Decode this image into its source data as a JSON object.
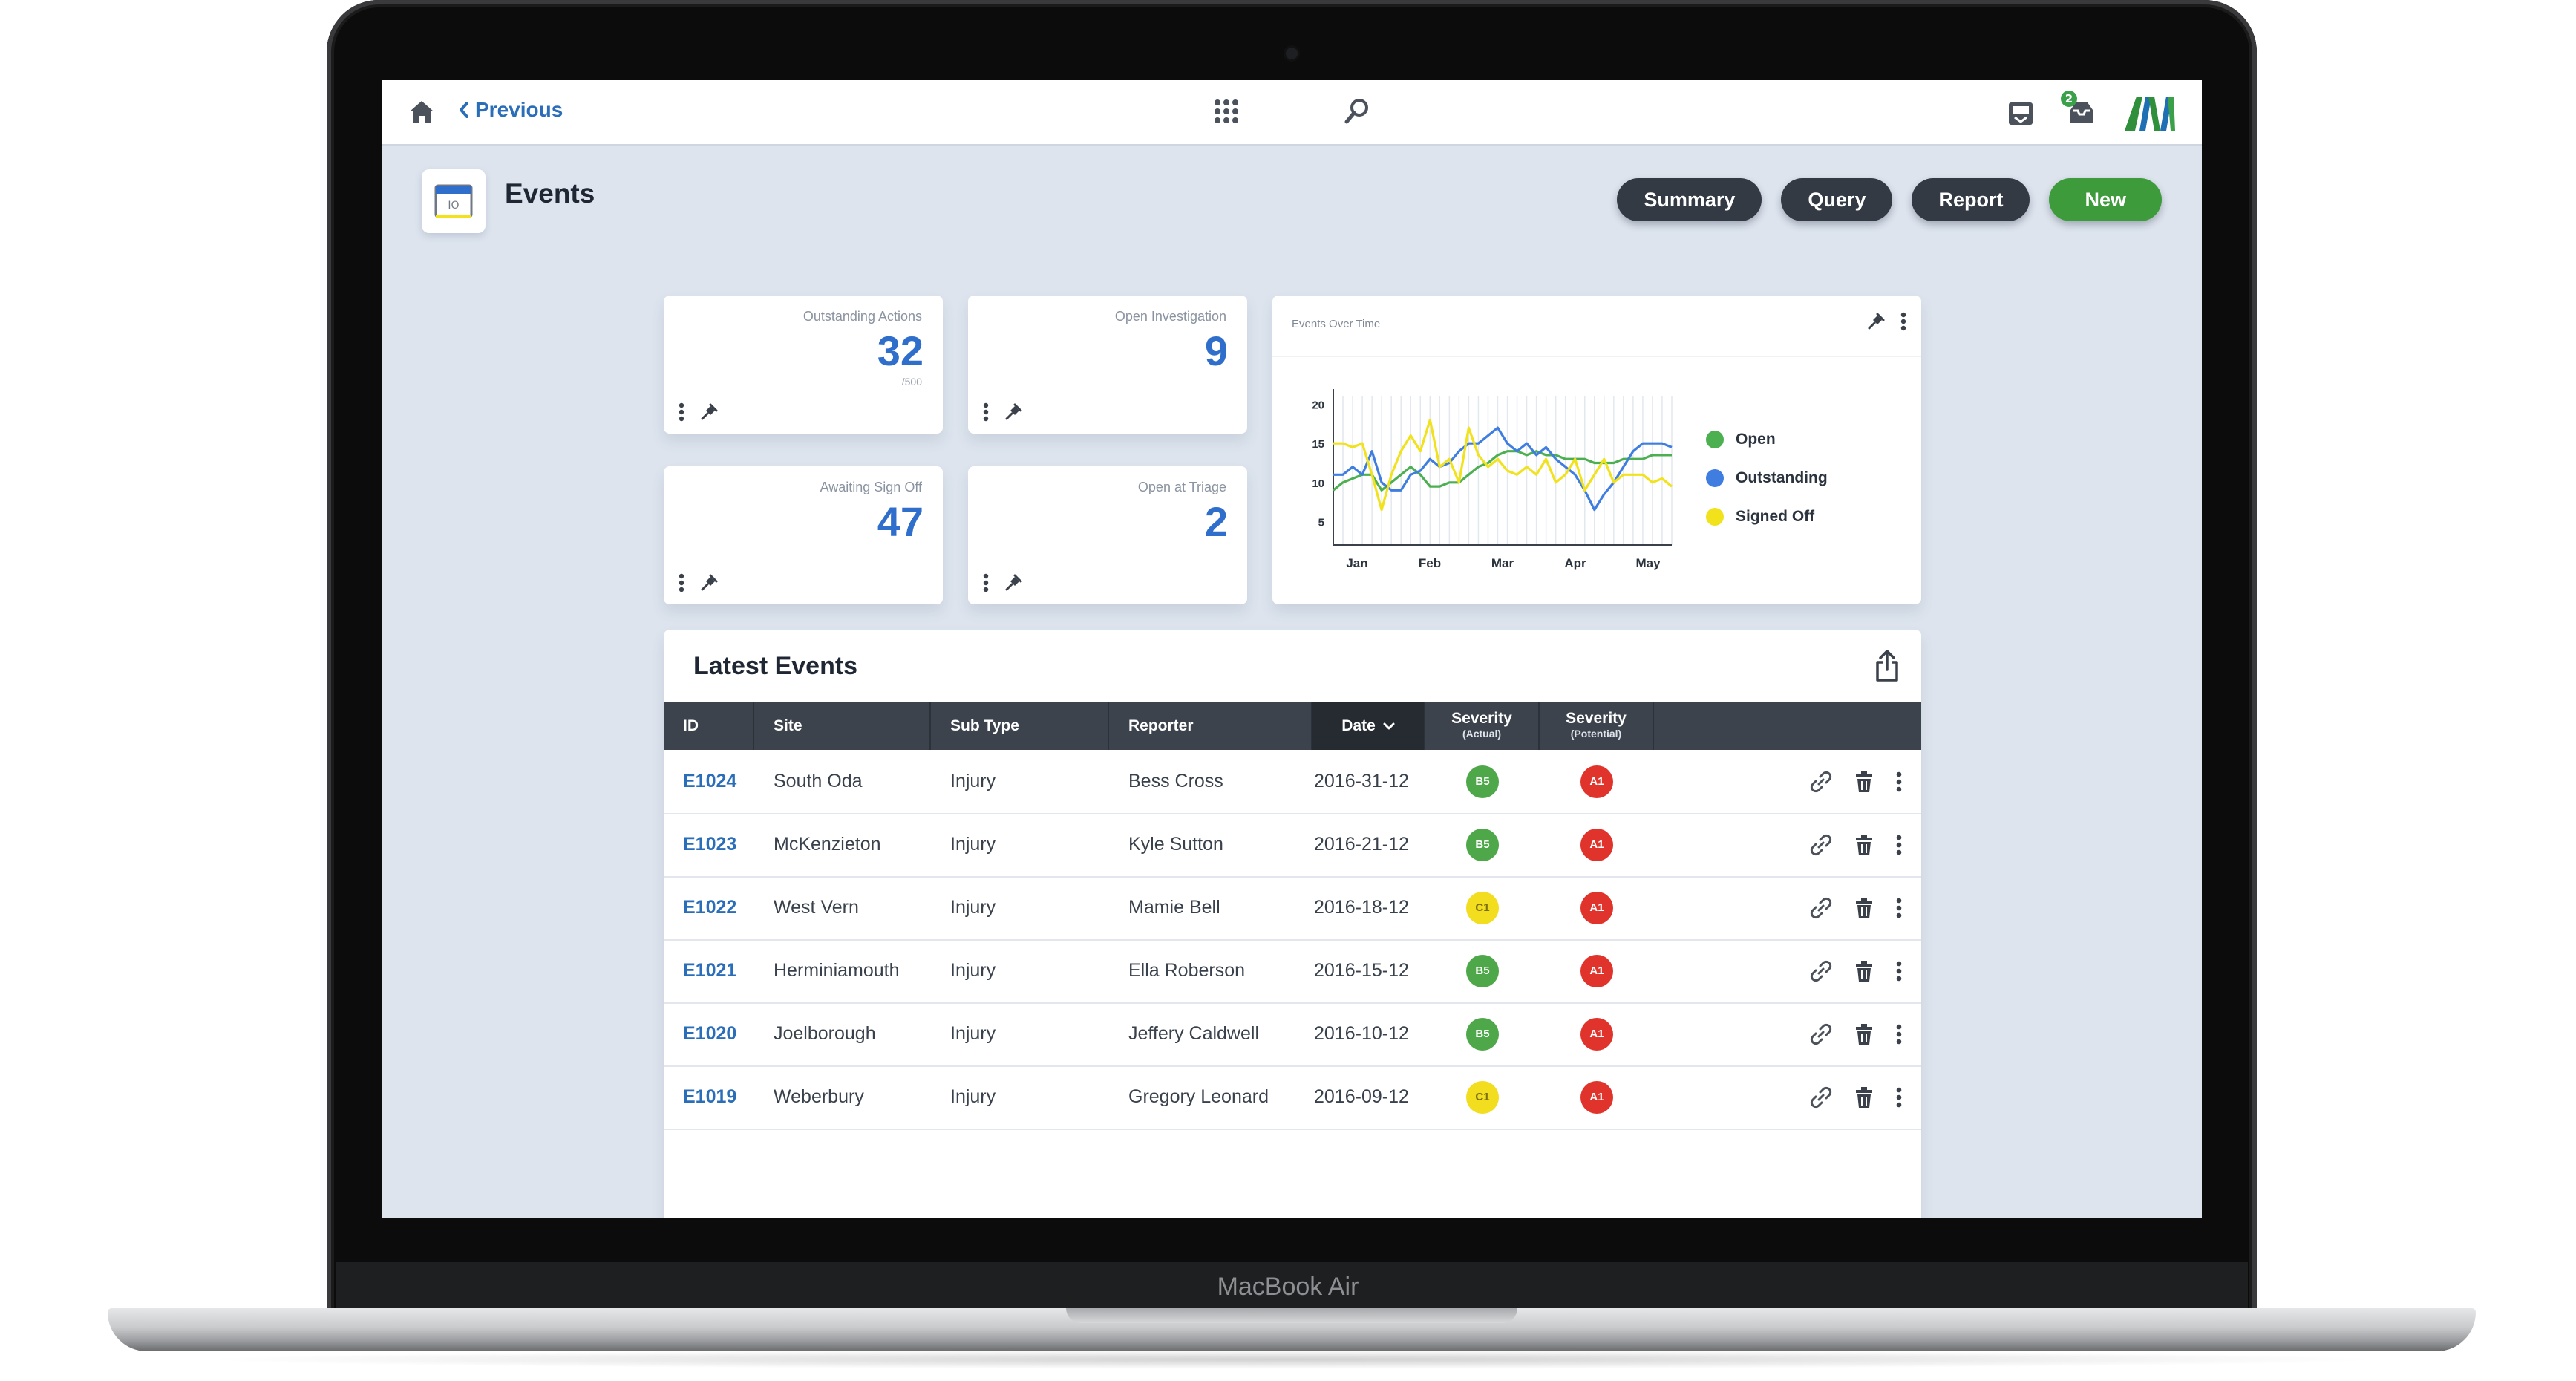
{
  "device": {
    "label": "MacBook Air"
  },
  "topbar": {
    "previous_label": "Previous",
    "inbox_badge": "2",
    "icons": [
      "home-icon",
      "chevron-left-icon",
      "apps-grid-icon",
      "search-icon",
      "tray-icon",
      "inbox-icon",
      "ava-logo"
    ]
  },
  "page": {
    "title": "Events",
    "buttons": {
      "summary": "Summary",
      "query": "Query",
      "report": "Report",
      "new": "New"
    }
  },
  "kpis": [
    {
      "label": "Outstanding Actions",
      "value": "32",
      "sub": "/500"
    },
    {
      "label": "Open Investigation",
      "value": "9"
    },
    {
      "label": "Awaiting Sign Off",
      "value": "47"
    },
    {
      "label": "Open at Triage",
      "value": "2"
    }
  ],
  "chart_data": {
    "type": "line",
    "title": "Events Over Time",
    "x_ticks": [
      "Jan",
      "Feb",
      "Mar",
      "Apr",
      "May"
    ],
    "y_ticks": [
      5,
      10,
      15,
      20
    ],
    "ylim": [
      2,
      21
    ],
    "grid": "vertical",
    "legend_position": "right",
    "series": [
      {
        "name": "Open",
        "color": "#4caf50",
        "values": [
          9,
          10,
          10.5,
          11,
          11,
          9,
          10,
          11,
          12,
          11,
          9.5,
          9.5,
          10,
          10,
          11,
          12,
          12.5,
          13.5,
          14,
          14,
          13.5,
          14,
          13.5,
          13.5,
          13,
          13,
          13,
          12.5,
          12.5,
          12.5,
          13,
          13,
          13,
          13.5,
          13.5,
          13.5
        ]
      },
      {
        "name": "Outstanding",
        "color": "#3f7ee0",
        "values": [
          11,
          11,
          12,
          11,
          14,
          10,
          9,
          9,
          11,
          11.5,
          13,
          12,
          12.5,
          14,
          15,
          15,
          16,
          17,
          15,
          14,
          15,
          13.5,
          14.5,
          13,
          12,
          11,
          9,
          6.5,
          8.5,
          10,
          12,
          14,
          15,
          15,
          15,
          14.5
        ]
      },
      {
        "name": "Signed Off",
        "color": "#f1e21c",
        "values": [
          15,
          15,
          14.5,
          15,
          11,
          6.5,
          11,
          14,
          16,
          14,
          18,
          12,
          13,
          10,
          17,
          13.5,
          12,
          13,
          11.5,
          11,
          12,
          11,
          13,
          10,
          11,
          13,
          9,
          11,
          13,
          10,
          11,
          11,
          11,
          10,
          10.5,
          9.5
        ]
      }
    ]
  },
  "table": {
    "title": "Latest Events",
    "columns": {
      "id": "ID",
      "site": "Site",
      "subtype": "Sub Type",
      "reporter": "Reporter",
      "date": "Date",
      "sev_actual": "Severity",
      "sev_actual_sub": "(Actual)",
      "sev_potential": "Severity",
      "sev_potential_sub": "(Potential)"
    },
    "sorted_by": "Date",
    "severity_colors": {
      "B5": "#4ea84a",
      "C1": "#f2dd1f",
      "A1": "#e0332b"
    },
    "rows": [
      {
        "id": "E1024",
        "site": "South Oda",
        "subtype": "Injury",
        "reporter": "Bess Cross",
        "date": "2016-31-12",
        "sev_actual": "B5",
        "sev_potential": "A1"
      },
      {
        "id": "E1023",
        "site": "McKenzieton",
        "subtype": "Injury",
        "reporter": "Kyle Sutton",
        "date": "2016-21-12",
        "sev_actual": "B5",
        "sev_potential": "A1"
      },
      {
        "id": "E1022",
        "site": "West Vern",
        "subtype": "Injury",
        "reporter": "Mamie Bell",
        "date": "2016-18-12",
        "sev_actual": "C1",
        "sev_potential": "A1"
      },
      {
        "id": "E1021",
        "site": "Herminiamouth",
        "subtype": "Injury",
        "reporter": "Ella Roberson",
        "date": "2016-15-12",
        "sev_actual": "B5",
        "sev_potential": "A1"
      },
      {
        "id": "E1020",
        "site": "Joelborough",
        "subtype": "Injury",
        "reporter": "Jeffery Caldwell",
        "date": "2016-10-12",
        "sev_actual": "B5",
        "sev_potential": "A1"
      },
      {
        "id": "E1019",
        "site": "Weberbury",
        "subtype": "Injury",
        "reporter": "Gregory Leonard",
        "date": "2016-09-12",
        "sev_actual": "C1",
        "sev_potential": "A1"
      }
    ]
  }
}
